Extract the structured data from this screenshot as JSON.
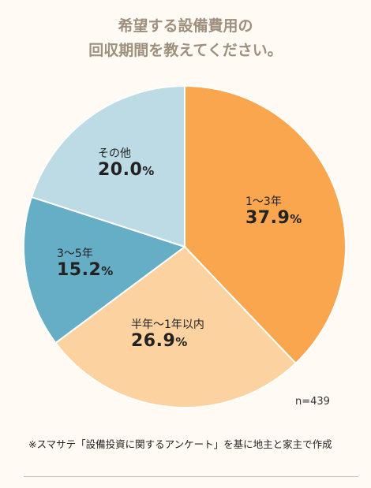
{
  "title_lines": [
    "希望する設備費用の",
    "回収期間を教えてください。"
  ],
  "chart_data": {
    "type": "pie",
    "title": "希望する設備費用の回収期間を教えてください。",
    "slices": [
      {
        "label": "1～3年",
        "value": 37.9,
        "value_text": "37.9",
        "color": "#f9a64e"
      },
      {
        "label": "半年～1年以内",
        "value": 26.9,
        "value_text": "26.9",
        "color": "#fcd3a0"
      },
      {
        "label": "3～5年",
        "value": 15.2,
        "value_text": "15.2",
        "color": "#66adc6"
      },
      {
        "label": "その他",
        "value": 20.0,
        "value_text": "20.0",
        "color": "#bcdbe5"
      }
    ],
    "unit": "%",
    "start": "12 o'clock",
    "direction": "clockwise"
  },
  "sample_size": "n=439",
  "footnote": "※スマサテ「設備投資に関するアンケート」を基に地主と家主で作成"
}
